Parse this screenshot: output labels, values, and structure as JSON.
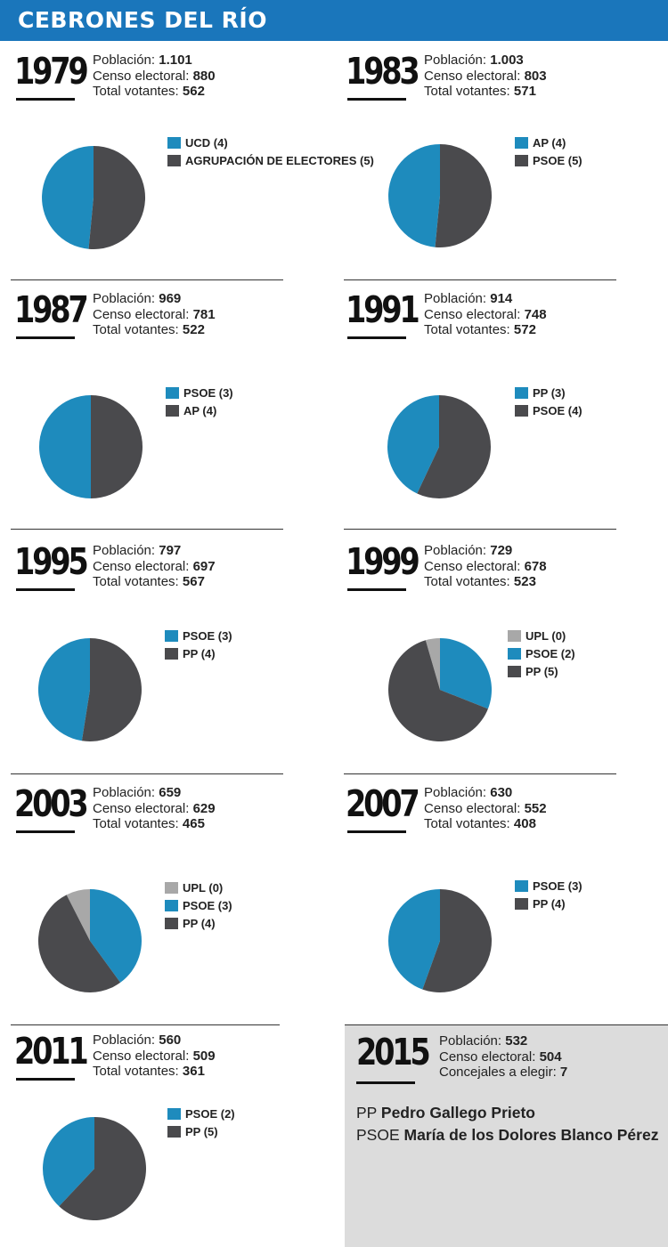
{
  "title": "CEBRONES DEL RÍO",
  "labels": {
    "poblacion": "Población:",
    "censo": "Censo electoral:",
    "votantes": "Total votantes:",
    "concejales": "Concejales a elegir:"
  },
  "colors": {
    "blue": "#1e8bbd",
    "dark": "#4a4a4d",
    "grey": "#a8a8a8",
    "banner": "#1a76bb"
  },
  "chart_data": [
    {
      "type": "pie",
      "year": "1979",
      "poblacion": "1.101",
      "censo": "880",
      "votantes": "562",
      "labels": [
        "UCD (4)",
        "AGRUPACIÓN DE ELECTORES (5)"
      ],
      "values": [
        48.5,
        51.5
      ],
      "colors": [
        "blue",
        "dark"
      ]
    },
    {
      "type": "pie",
      "year": "1983",
      "poblacion": "1.003",
      "censo": "803",
      "votantes": "571",
      "labels": [
        "AP (4)",
        "PSOE (5)"
      ],
      "values": [
        48.5,
        51.5
      ],
      "colors": [
        "blue",
        "dark"
      ]
    },
    {
      "type": "pie",
      "year": "1987",
      "poblacion": "969",
      "censo": "781",
      "votantes": "522",
      "labels": [
        "PSOE (3)",
        "AP (4)"
      ],
      "values": [
        50,
        50
      ],
      "colors": [
        "blue",
        "dark"
      ]
    },
    {
      "type": "pie",
      "year": "1991",
      "poblacion": "914",
      "censo": "748",
      "votantes": "572",
      "labels": [
        "PP (3)",
        "PSOE (4)"
      ],
      "values": [
        43,
        57
      ],
      "colors": [
        "blue",
        "dark"
      ]
    },
    {
      "type": "pie",
      "year": "1995",
      "poblacion": "797",
      "censo": "697",
      "votantes": "567",
      "labels": [
        "PSOE (3)",
        "PP (4)"
      ],
      "values": [
        47.5,
        52.5
      ],
      "colors": [
        "blue",
        "dark"
      ]
    },
    {
      "type": "pie",
      "year": "1999",
      "poblacion": "729",
      "censo": "678",
      "votantes": "523",
      "labels": [
        "UPL (0)",
        "PSOE (2)",
        "PP (5)"
      ],
      "values": [
        4.5,
        31,
        64.5
      ],
      "colors": [
        "grey",
        "blue",
        "dark"
      ]
    },
    {
      "type": "pie",
      "year": "2003",
      "poblacion": "659",
      "censo": "629",
      "votantes": "465",
      "labels": [
        "UPL (0)",
        "PSOE (3)",
        "PP (4)"
      ],
      "values": [
        7.5,
        40,
        52.5
      ],
      "colors": [
        "grey",
        "blue",
        "dark"
      ]
    },
    {
      "type": "pie",
      "year": "2007",
      "poblacion": "630",
      "censo": "552",
      "votantes": "408",
      "labels": [
        "PSOE (3)",
        "PP (4)"
      ],
      "values": [
        44.5,
        55.5
      ],
      "colors": [
        "blue",
        "dark"
      ]
    },
    {
      "type": "pie",
      "year": "2011",
      "poblacion": "560",
      "censo": "509",
      "votantes": "361",
      "labels": [
        "PSOE (2)",
        "PP (5)"
      ],
      "values": [
        38,
        62
      ],
      "colors": [
        "blue",
        "dark"
      ]
    }
  ],
  "upcoming": {
    "year": "2015",
    "poblacion": "532",
    "censo": "504",
    "concejales": "7",
    "candidates": [
      {
        "party": "PP",
        "name": "Pedro Gallego Prieto"
      },
      {
        "party": "PSOE",
        "name": "María de los Dolores Blanco Pérez"
      }
    ]
  }
}
